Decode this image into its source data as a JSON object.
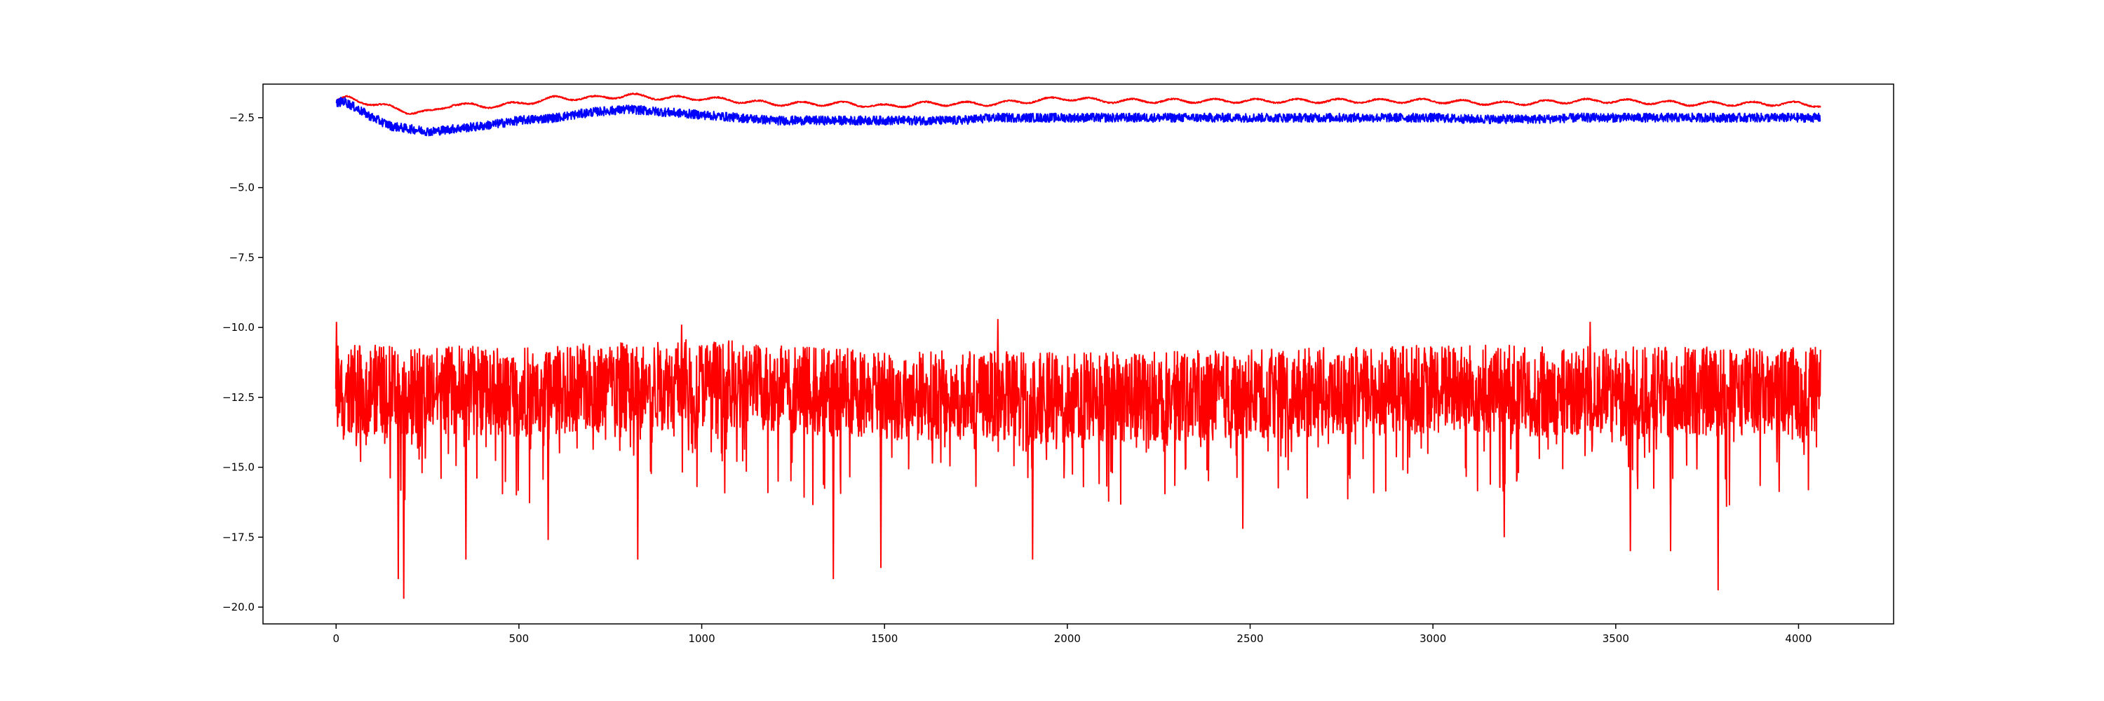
{
  "chart_data": {
    "type": "line",
    "title": "",
    "xlabel": "",
    "ylabel": "",
    "xlim": [
      -200,
      4260
    ],
    "ylim": [
      -20.6,
      -1.3
    ],
    "grid": false,
    "legend": "none",
    "x_ticks": [
      {
        "value": 0,
        "label": "0"
      },
      {
        "value": 500,
        "label": "500"
      },
      {
        "value": 1000,
        "label": "1000"
      },
      {
        "value": 1500,
        "label": "1500"
      },
      {
        "value": 2000,
        "label": "2000"
      },
      {
        "value": 2500,
        "label": "2500"
      },
      {
        "value": 3000,
        "label": "3000"
      },
      {
        "value": 3500,
        "label": "3500"
      },
      {
        "value": 4000,
        "label": "4000"
      }
    ],
    "y_ticks": [
      {
        "value": -2.5,
        "label": "−2.5"
      },
      {
        "value": -5.0,
        "label": "−5.0"
      },
      {
        "value": -7.5,
        "label": "−7.5"
      },
      {
        "value": -10.0,
        "label": "−10.0"
      },
      {
        "value": -12.5,
        "label": "−12.5"
      },
      {
        "value": -15.0,
        "label": "−15.0"
      },
      {
        "value": -17.5,
        "label": "−17.5"
      },
      {
        "value": -20.0,
        "label": "−20.0"
      }
    ],
    "series": [
      {
        "color": "#ff0000",
        "x_start": 0,
        "x_end": 4060,
        "points": [
          [
            0,
            -1.9
          ],
          [
            30,
            -1.8
          ],
          [
            60,
            -1.9
          ],
          [
            100,
            -2.0
          ],
          [
            140,
            -2.1
          ],
          [
            200,
            -2.3
          ],
          [
            260,
            -2.3
          ],
          [
            320,
            -2.0
          ],
          [
            400,
            -2.1
          ],
          [
            500,
            -2.0
          ],
          [
            600,
            -1.8
          ],
          [
            700,
            -1.8
          ],
          [
            800,
            -1.7
          ],
          [
            900,
            -1.8
          ],
          [
            1000,
            -1.8
          ],
          [
            1100,
            -1.9
          ],
          [
            1200,
            -2.0
          ],
          [
            1300,
            -2.0
          ],
          [
            1400,
            -2.0
          ],
          [
            1500,
            -2.1
          ],
          [
            1600,
            -2.0
          ],
          [
            1700,
            -2.0
          ],
          [
            1800,
            -2.0
          ],
          [
            1900,
            -1.9
          ],
          [
            2000,
            -1.8
          ],
          [
            2100,
            -1.9
          ],
          [
            2200,
            -1.9
          ],
          [
            2300,
            -1.9
          ],
          [
            2400,
            -1.9
          ],
          [
            2500,
            -1.9
          ],
          [
            2600,
            -1.9
          ],
          [
            2700,
            -1.9
          ],
          [
            2800,
            -1.9
          ],
          [
            2900,
            -1.9
          ],
          [
            3000,
            -1.9
          ],
          [
            3100,
            -1.95
          ],
          [
            3200,
            -2.0
          ],
          [
            3300,
            -1.95
          ],
          [
            3400,
            -1.9
          ],
          [
            3500,
            -1.9
          ],
          [
            3600,
            -1.95
          ],
          [
            3700,
            -2.0
          ],
          [
            3800,
            -2.0
          ],
          [
            3900,
            -2.0
          ],
          [
            4000,
            -2.0
          ],
          [
            4060,
            -2.05
          ]
        ]
      },
      {
        "color": "#0000ff",
        "x_start": 0,
        "x_end": 4060,
        "points": [
          [
            0,
            -2.0
          ],
          [
            20,
            -1.9
          ],
          [
            60,
            -2.2
          ],
          [
            100,
            -2.5
          ],
          [
            150,
            -2.8
          ],
          [
            200,
            -2.9
          ],
          [
            260,
            -3.0
          ],
          [
            320,
            -2.9
          ],
          [
            400,
            -2.8
          ],
          [
            500,
            -2.6
          ],
          [
            600,
            -2.5
          ],
          [
            700,
            -2.3
          ],
          [
            800,
            -2.2
          ],
          [
            900,
            -2.3
          ],
          [
            1000,
            -2.4
          ],
          [
            1100,
            -2.5
          ],
          [
            1200,
            -2.6
          ],
          [
            1300,
            -2.6
          ],
          [
            1400,
            -2.6
          ],
          [
            1500,
            -2.6
          ],
          [
            1600,
            -2.6
          ],
          [
            1700,
            -2.6
          ],
          [
            1800,
            -2.5
          ],
          [
            1900,
            -2.5
          ],
          [
            2000,
            -2.5
          ],
          [
            2100,
            -2.5
          ],
          [
            2200,
            -2.5
          ],
          [
            2300,
            -2.5
          ],
          [
            2400,
            -2.5
          ],
          [
            2500,
            -2.5
          ],
          [
            2600,
            -2.5
          ],
          [
            2700,
            -2.5
          ],
          [
            2800,
            -2.5
          ],
          [
            2900,
            -2.5
          ],
          [
            3000,
            -2.5
          ],
          [
            3100,
            -2.55
          ],
          [
            3200,
            -2.55
          ],
          [
            3300,
            -2.55
          ],
          [
            3400,
            -2.5
          ],
          [
            3500,
            -2.5
          ],
          [
            3600,
            -2.5
          ],
          [
            3700,
            -2.5
          ],
          [
            3800,
            -2.5
          ],
          [
            3900,
            -2.5
          ],
          [
            4000,
            -2.5
          ],
          [
            4060,
            -2.5
          ]
        ]
      },
      {
        "color": "#ff0000",
        "x_start": 0,
        "x_end": 4060,
        "points": [
          [
            0,
            -12.2
          ],
          [
            500,
            -12.3
          ],
          [
            1000,
            -12.0
          ],
          [
            1500,
            -12.4
          ],
          [
            2000,
            -12.5
          ],
          [
            2500,
            -12.4
          ],
          [
            3000,
            -12.2
          ],
          [
            3500,
            -12.3
          ],
          [
            4060,
            -12.3
          ]
        ],
        "peaks": [
          [
            1,
            -9.8
          ],
          [
            1810,
            -9.7
          ],
          [
            3430,
            -9.8
          ],
          [
            945,
            -9.9
          ]
        ],
        "dips": [
          [
            170,
            -19.0
          ],
          [
            185,
            -19.7
          ],
          [
            355,
            -18.3
          ],
          [
            825,
            -18.3
          ],
          [
            1360,
            -19.0
          ],
          [
            1490,
            -18.6
          ],
          [
            1905,
            -18.3
          ],
          [
            2480,
            -17.2
          ],
          [
            3780,
            -19.4
          ],
          [
            3540,
            -18.0
          ],
          [
            3650,
            -18.0
          ],
          [
            3195,
            -17.5
          ],
          [
            580,
            -17.6
          ]
        ]
      }
    ]
  }
}
